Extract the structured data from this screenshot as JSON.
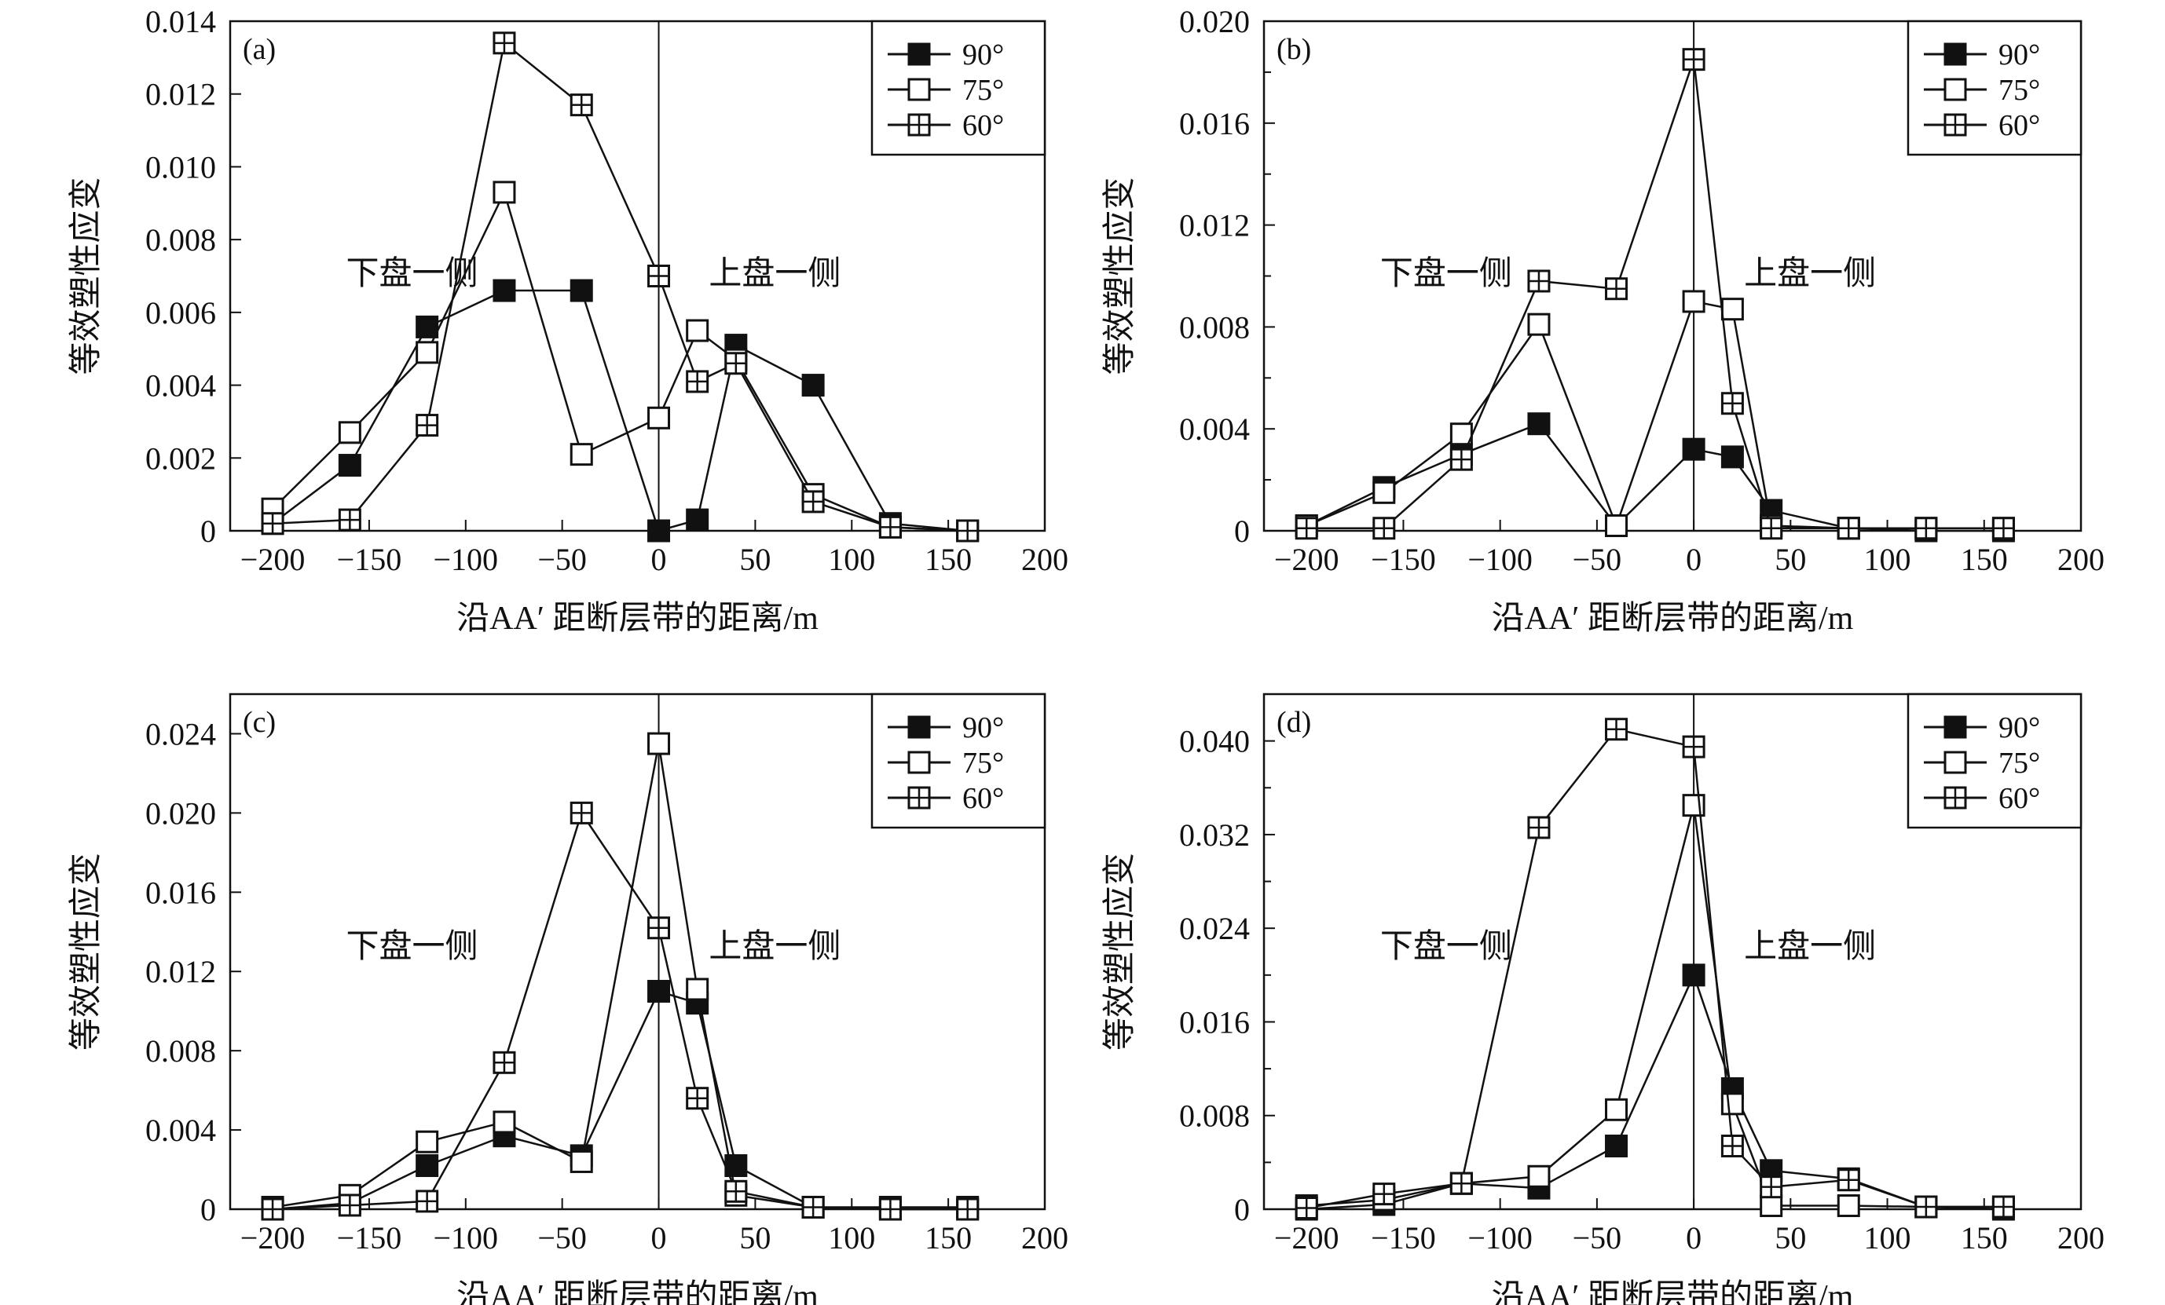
{
  "x_positions": [
    -200,
    -160,
    -120,
    -80,
    -40,
    0,
    20,
    40,
    80,
    120,
    160
  ],
  "chart_data": [
    {
      "type": "line",
      "panel_label": "(a)",
      "ylabel": "等效塑性应变",
      "xlabel": "沿AA′ 距断层带的距离/m",
      "left_annotation": "下盘一侧",
      "right_annotation": "上盘一侧",
      "xlim": [
        -222,
        200
      ],
      "ylim": [
        0,
        0.014
      ],
      "xticks": [
        -200,
        -150,
        -100,
        -50,
        0,
        50,
        100,
        150,
        200
      ],
      "xtick_labels": [
        "−200",
        "−150",
        "−100",
        "−50",
        "0",
        "50",
        "100",
        "150",
        "200"
      ],
      "yticks": [
        0,
        0.002,
        0.004,
        0.006,
        0.008,
        0.01,
        0.012,
        0.014
      ],
      "ytick_labels": [
        "0",
        "0.002",
        "0.004",
        "0.006",
        "0.008",
        "0.010",
        "0.012",
        "0.014"
      ],
      "yminor": [],
      "legend_position": "top-right",
      "series": [
        {
          "name": "90°",
          "marker": "filled-square",
          "values": [
            0.0002,
            0.0018,
            0.0056,
            0.0066,
            0.0066,
            0.0,
            0.0003,
            0.0051,
            0.004,
            0.0002,
            0.0
          ]
        },
        {
          "name": "75°",
          "marker": "open-square",
          "values": [
            0.0006,
            0.0027,
            0.0049,
            0.0093,
            0.0021,
            0.0031,
            0.0055,
            0.0047,
            0.001,
            0.0001,
            0.0
          ]
        },
        {
          "name": "60°",
          "marker": "crossed-square",
          "values": [
            0.0002,
            0.0003,
            0.0029,
            0.0134,
            0.0117,
            0.007,
            0.0041,
            0.0046,
            0.0008,
            0.0001,
            0.0
          ]
        }
      ]
    },
    {
      "type": "line",
      "panel_label": "(b)",
      "ylabel": "等效塑性应变",
      "xlabel": "沿AA′ 距断层带的距离/m",
      "left_annotation": "下盘一侧",
      "right_annotation": "上盘一侧",
      "xlim": [
        -222,
        200
      ],
      "ylim": [
        0,
        0.02
      ],
      "xticks": [
        -200,
        -150,
        -100,
        -50,
        0,
        50,
        100,
        150,
        200
      ],
      "xtick_labels": [
        "−200",
        "−150",
        "−100",
        "−50",
        "0",
        "50",
        "100",
        "150",
        "200"
      ],
      "yticks": [
        0,
        0.004,
        0.008,
        0.012,
        0.016,
        0.02
      ],
      "ytick_labels": [
        "0",
        "0.004",
        "0.008",
        "0.012",
        "0.016",
        "0.020"
      ],
      "yminor": [
        0.002,
        0.006,
        0.01,
        0.014,
        0.018
      ],
      "legend_position": "top-right",
      "series": [
        {
          "name": "90°",
          "marker": "filled-square",
          "values": [
            0.0002,
            0.0017,
            0.003,
            0.0042,
            0.0002,
            0.0032,
            0.0029,
            0.0008,
            0.0001,
            0.0,
            0.0
          ]
        },
        {
          "name": "75°",
          "marker": "open-square",
          "values": [
            0.0002,
            0.0015,
            0.0038,
            0.0081,
            0.0002,
            0.009,
            0.0087,
            0.0002,
            0.0001,
            0.0001,
            0.0001
          ]
        },
        {
          "name": "60°",
          "marker": "crossed-square",
          "values": [
            0.0001,
            0.0001,
            0.0028,
            0.0098,
            0.0095,
            0.0185,
            0.005,
            0.0001,
            0.0001,
            0.0001,
            0.0001
          ]
        }
      ]
    },
    {
      "type": "line",
      "panel_label": "(c)",
      "ylabel": "等效塑性应变",
      "xlabel": "沿AA′ 距断层带的距离/m",
      "left_annotation": "下盘一侧",
      "right_annotation": "上盘一侧",
      "xlim": [
        -222,
        200
      ],
      "ylim": [
        0,
        0.026
      ],
      "xticks": [
        -200,
        -150,
        -100,
        -50,
        0,
        50,
        100,
        150,
        200
      ],
      "xtick_labels": [
        "−200",
        "−150",
        "−100",
        "−50",
        "0",
        "50",
        "100",
        "150",
        "200"
      ],
      "yticks": [
        0,
        0.004,
        0.008,
        0.012,
        0.016,
        0.02,
        0.024
      ],
      "ytick_labels": [
        "0",
        "0.004",
        "0.008",
        "0.012",
        "0.016",
        "0.020",
        "0.024"
      ],
      "yminor": [],
      "legend_position": "top-right",
      "series": [
        {
          "name": "90°",
          "marker": "filled-square",
          "values": [
            0.0,
            0.0003,
            0.0022,
            0.0037,
            0.0027,
            0.011,
            0.0104,
            0.0022,
            0.0001,
            0.0,
            0.0
          ]
        },
        {
          "name": "75°",
          "marker": "open-square",
          "values": [
            0.0001,
            0.0007,
            0.0034,
            0.0044,
            0.0024,
            0.0235,
            0.0111,
            0.0007,
            0.0001,
            0.0001,
            0.0001
          ]
        },
        {
          "name": "60°",
          "marker": "crossed-square",
          "values": [
            0.0,
            0.0002,
            0.0004,
            0.0074,
            0.02,
            0.0142,
            0.0056,
            0.0009,
            0.0001,
            0.0,
            0.0
          ]
        }
      ]
    },
    {
      "type": "line",
      "panel_label": "(d)",
      "ylabel": "等效塑性应变",
      "xlabel": "沿AA′ 距断层带的距离/m",
      "left_annotation": "下盘一侧",
      "right_annotation": "上盘一侧",
      "xlim": [
        -222,
        200
      ],
      "ylim": [
        0,
        0.044
      ],
      "xticks": [
        -200,
        -150,
        -100,
        -50,
        0,
        50,
        100,
        150,
        200
      ],
      "xtick_labels": [
        "−200",
        "−150",
        "−100",
        "−50",
        "0",
        "50",
        "100",
        "150",
        "200"
      ],
      "yticks": [
        0,
        0.008,
        0.016,
        0.024,
        0.032,
        0.04
      ],
      "ytick_labels": [
        "0",
        "0.008",
        "0.016",
        "0.024",
        "0.032",
        "0.040"
      ],
      "yminor": [
        0.004,
        0.012,
        0.02,
        0.028,
        0.036
      ],
      "legend_position": "top-right",
      "series": [
        {
          "name": "90°",
          "marker": "filled-square",
          "values": [
            0.0,
            0.0004,
            0.0022,
            0.0018,
            0.0054,
            0.02,
            0.0103,
            0.0033,
            0.0026,
            0.0002,
            0.0
          ]
        },
        {
          "name": "75°",
          "marker": "open-square",
          "values": [
            0.0003,
            0.0008,
            0.0022,
            0.0028,
            0.0085,
            0.0345,
            0.009,
            0.0003,
            0.0003,
            0.0002,
            0.0002
          ]
        },
        {
          "name": "60°",
          "marker": "crossed-square",
          "values": [
            0.0001,
            0.0013,
            0.0022,
            0.0326,
            0.041,
            0.0395,
            0.0054,
            0.0019,
            0.0025,
            0.0002,
            0.0002
          ]
        }
      ]
    }
  ]
}
